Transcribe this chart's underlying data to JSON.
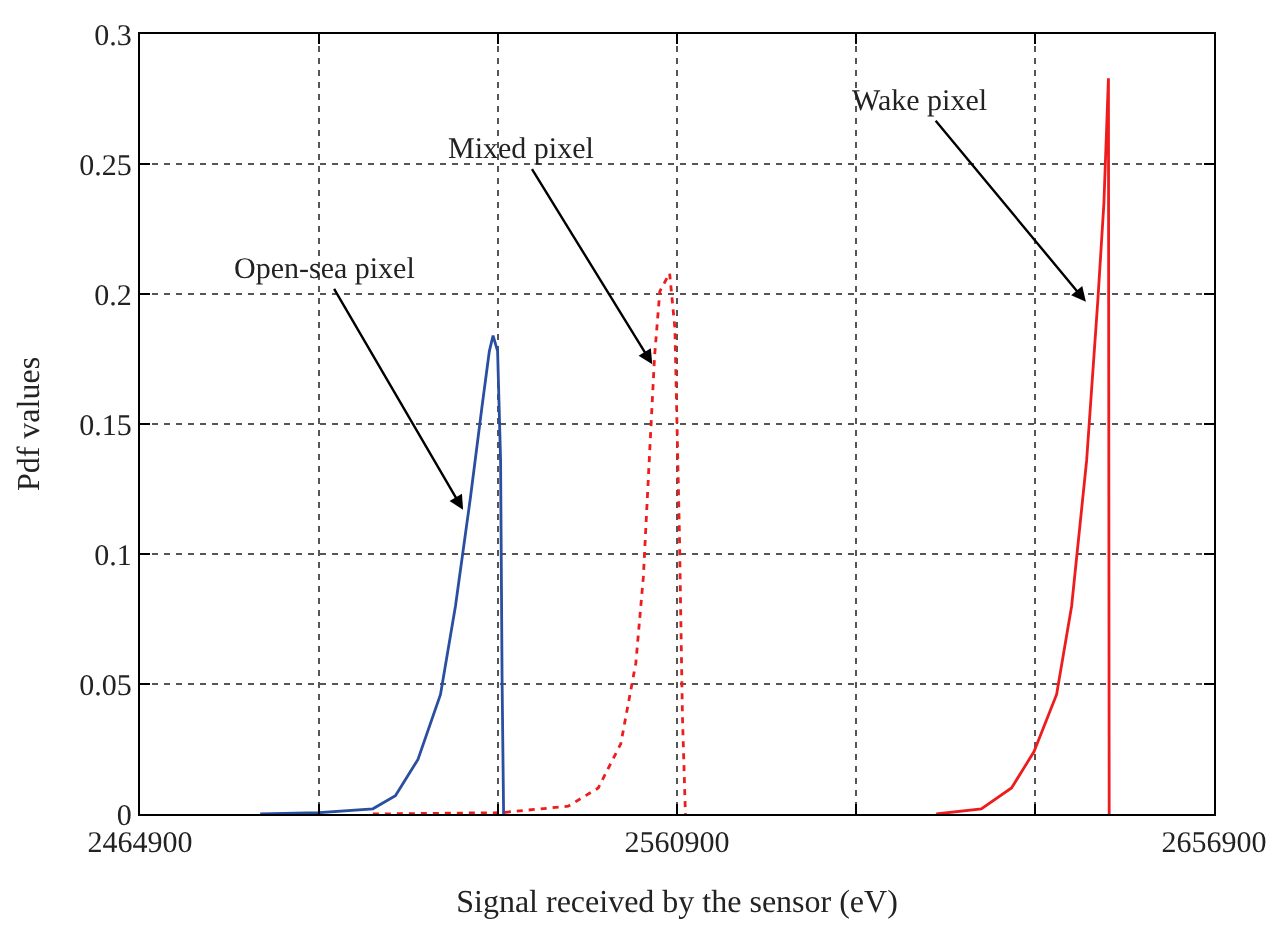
{
  "chart_data": {
    "type": "line",
    "xlabel": "Signal received by the sensor (eV)",
    "ylabel": "Pdf values",
    "xlim": [
      2464900,
      2656900
    ],
    "xticks": [
      2464900,
      {
        "value": 2496900,
        "label": null
      },
      {
        "value": 2528900,
        "label": null
      },
      2560900,
      {
        "value": 2592900,
        "label": null
      },
      {
        "value": 2624900,
        "label": null
      },
      2656900
    ],
    "ylim": [
      0,
      0.3
    ],
    "yticks": [
      0,
      0.05,
      0.1,
      0.15,
      0.2,
      0.25,
      0.3
    ],
    "grid": true,
    "legend": false,
    "marker": "none",
    "series": [
      {
        "color": "#2a4ea0",
        "line_style": "solid",
        "x": [
          2486390,
          2496860,
          2506530,
          2510560,
          2514590,
          2518620,
          2521300,
          2523990,
          2526000,
          2527350,
          2528020,
          2528830,
          2529360,
          2529630,
          2529900
        ],
        "values": [
          0,
          0.0005,
          0.002,
          0.007,
          0.021,
          0.046,
          0.08,
          0.122,
          0.156,
          0.178,
          0.184,
          0.178,
          0.136,
          0.052,
          0
        ]
      },
      {
        "color": "#ee1c1c",
        "line_style": "dotted",
        "x": [
          2506530,
          2529360,
          2541450,
          2546820,
          2550850,
          2553540,
          2554880,
          2556220,
          2556890,
          2557830,
          2559580,
          2560520,
          2561330,
          2561870,
          2562400
        ],
        "values": [
          0,
          0.0005,
          0.003,
          0.01,
          0.027,
          0.058,
          0.091,
          0.148,
          0.176,
          0.201,
          0.208,
          0.187,
          0.108,
          0.038,
          0
        ]
      },
      {
        "color": "#ee1c1c",
        "line_style": "solid",
        "x": [
          2607250,
          2615300,
          2620700,
          2624730,
          2628760,
          2631450,
          2634130,
          2636150,
          2637220,
          2638030,
          2638160
        ],
        "values": [
          0,
          0.002,
          0.01,
          0.024,
          0.046,
          0.08,
          0.136,
          0.198,
          0.235,
          0.283,
          0
        ]
      }
    ],
    "annotations": [
      {
        "text": "Open-sea pixel",
        "x": 2522650,
        "y": 0.117
      },
      {
        "text": "Mixed pixel",
        "x": 2556480,
        "y": 0.173
      },
      {
        "text": "Wake pixel",
        "x": 2634000,
        "y": 0.197
      }
    ]
  }
}
